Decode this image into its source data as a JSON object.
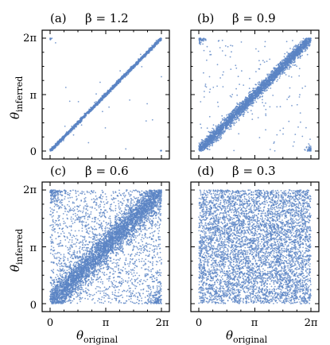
{
  "figure": {
    "ylabel": "θ",
    "ylabel_sub": "inferred",
    "xlabel": "θ",
    "xlabel_sub": "original"
  },
  "chart_data": [
    {
      "type": "scatter",
      "panel_letter": "(a)",
      "title": "β = 1.2",
      "xticks": [
        "0",
        "π",
        "2π"
      ],
      "yticks": [
        "0",
        "π",
        "2π"
      ],
      "xlim": [
        0,
        6.2832
      ],
      "ylim": [
        0,
        6.2832
      ],
      "point_color": "#5b84c4",
      "points_shown": 2000,
      "diagonal_spread": 0.05,
      "uniform_fraction": 0.01
    },
    {
      "type": "scatter",
      "panel_letter": "(b)",
      "title": "β = 0.9",
      "xticks": [
        "0",
        "π",
        "2π"
      ],
      "yticks": [
        "0",
        "π",
        "2π"
      ],
      "xlim": [
        0,
        6.2832
      ],
      "ylim": [
        0,
        6.2832
      ],
      "point_color": "#5b84c4",
      "points_shown": 3500,
      "diagonal_spread": 0.18,
      "uniform_fraction": 0.04
    },
    {
      "type": "scatter",
      "panel_letter": "(c)",
      "title": "β = 0.6",
      "xticks": [
        "0",
        "π",
        "2π"
      ],
      "yticks": [
        "0",
        "π",
        "2π"
      ],
      "xlim": [
        0,
        6.2832
      ],
      "ylim": [
        0,
        6.2832
      ],
      "point_color": "#5b84c4",
      "points_shown": 6000,
      "diagonal_spread": 0.45,
      "uniform_fraction": 0.3
    },
    {
      "type": "scatter",
      "panel_letter": "(d)",
      "title": "β = 0.3",
      "xticks": [
        "0",
        "π",
        "2π"
      ],
      "yticks": [
        "0",
        "π",
        "2π"
      ],
      "xlim": [
        0,
        6.2832
      ],
      "ylim": [
        0,
        6.2832
      ],
      "point_color": "#5b84c4",
      "points_shown": 5500,
      "diagonal_spread": 3.0,
      "uniform_fraction": 1.0
    }
  ]
}
